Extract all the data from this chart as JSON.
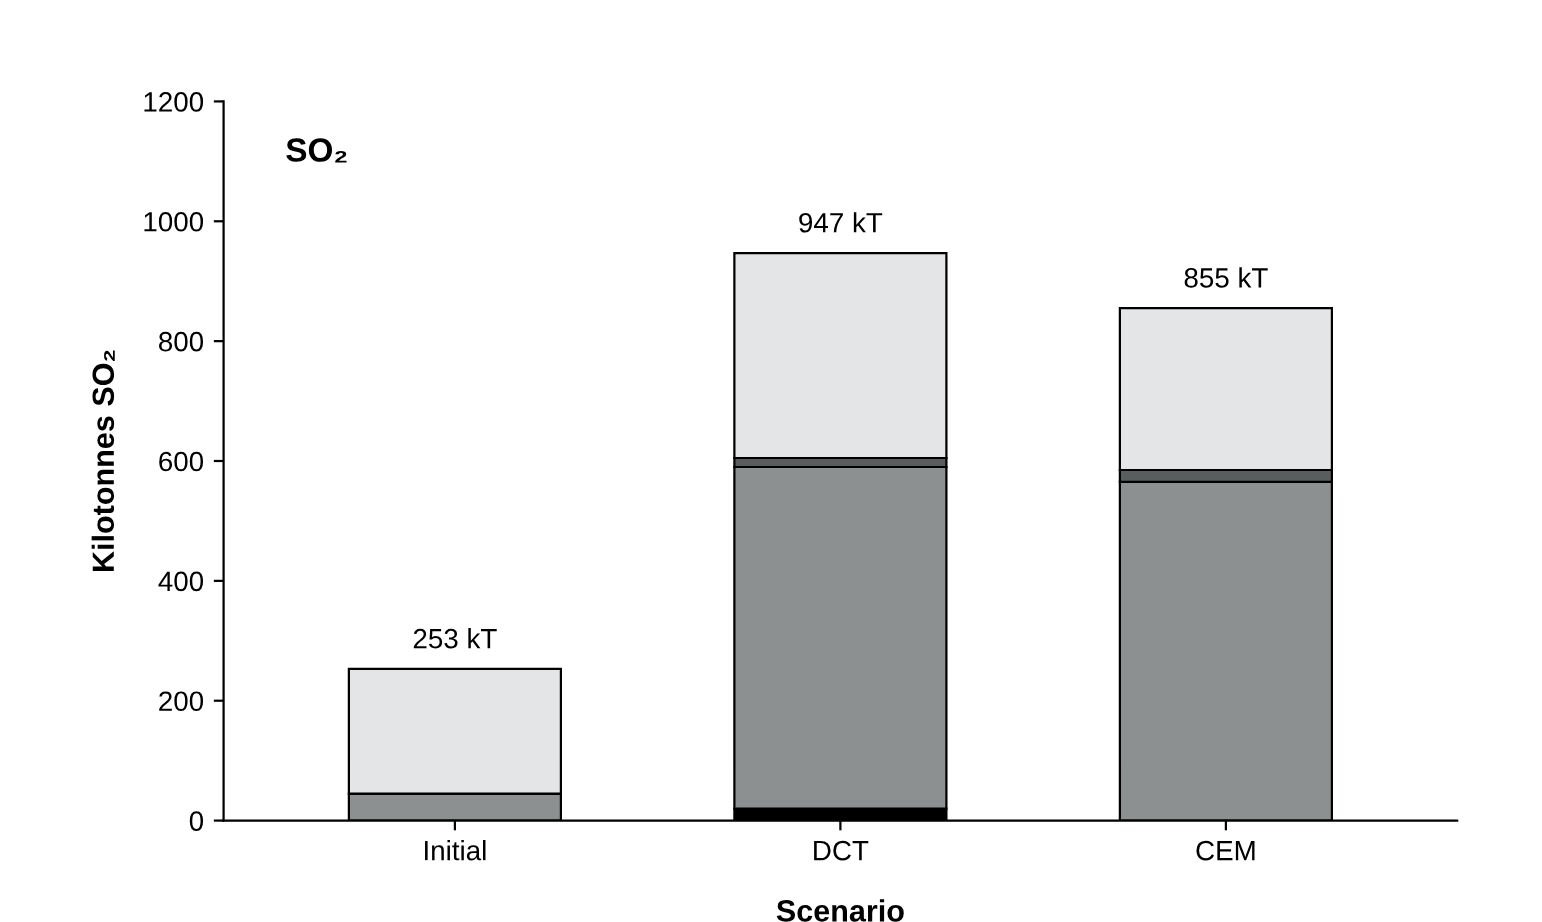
{
  "chart_data": {
    "type": "bar",
    "title": "SO₂",
    "xlabel": "Scenario",
    "ylabel": "Kilotonnes SO₂",
    "categories": [
      "Initial",
      "DCT",
      "CEM"
    ],
    "stacked": true,
    "series": [
      {
        "color": "#000000",
        "values": [
          0,
          20,
          null
        ]
      },
      {
        "color": "#8c9091",
        "values": [
          45,
          570,
          565
        ]
      },
      {
        "color": "#5a5d5e",
        "values": [
          0,
          15,
          20
        ]
      },
      {
        "color": "#e4e5e7",
        "values": [
          208,
          342,
          270
        ]
      }
    ],
    "totals": [
      "253 kT",
      "947 kT",
      "855 kT"
    ],
    "ylim": [
      0,
      1200
    ],
    "yticks": [
      0,
      200,
      400,
      600,
      800,
      1000,
      1200
    ],
    "grid": false,
    "legend": false
  }
}
